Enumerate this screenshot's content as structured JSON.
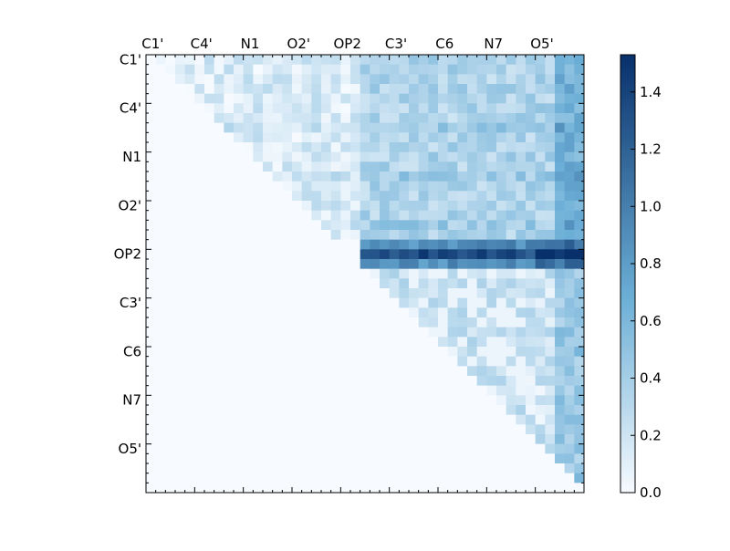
{
  "chart_data": {
    "type": "heatmap",
    "title": "",
    "xlabel": "",
    "ylabel": "",
    "x_tick_labels": [
      "C1'",
      "C4'",
      "N1",
      "O2'",
      "OP2",
      "C3'",
      "C6",
      "N7",
      "O5'"
    ],
    "y_tick_labels": [
      "C1'",
      "C4'",
      "N1",
      "O2'",
      "OP2",
      "C3'",
      "C6",
      "N7",
      "O5'"
    ],
    "tick_every": 5,
    "n_rows": 45,
    "n_cols": 45,
    "colormap": "Blues",
    "colors": {
      "low": "#f7fbff",
      "mid": "#6baed6",
      "high": "#08306b"
    },
    "colorbar": {
      "vmin": 0.0,
      "vmax": 1.53,
      "tick_values": [
        0.0,
        0.2,
        0.4,
        0.6,
        0.8,
        1.0,
        1.2,
        1.4
      ],
      "tick_labels": [
        "0.0",
        "0.2",
        "0.4",
        "0.6",
        "0.8",
        "1.0",
        "1.2",
        "1.4"
      ]
    },
    "value_estimates": {
      "lower_triangle": 0.0,
      "block_rows_0_to_18": 0.15,
      "block_rows_0_to_18_cols_22_to_44": 0.35,
      "band_rows_19_to_21": 1.0,
      "band_peak": 1.53,
      "rows_22_to_44": 0.2,
      "bright_columns": [
        42,
        43,
        44
      ]
    }
  }
}
